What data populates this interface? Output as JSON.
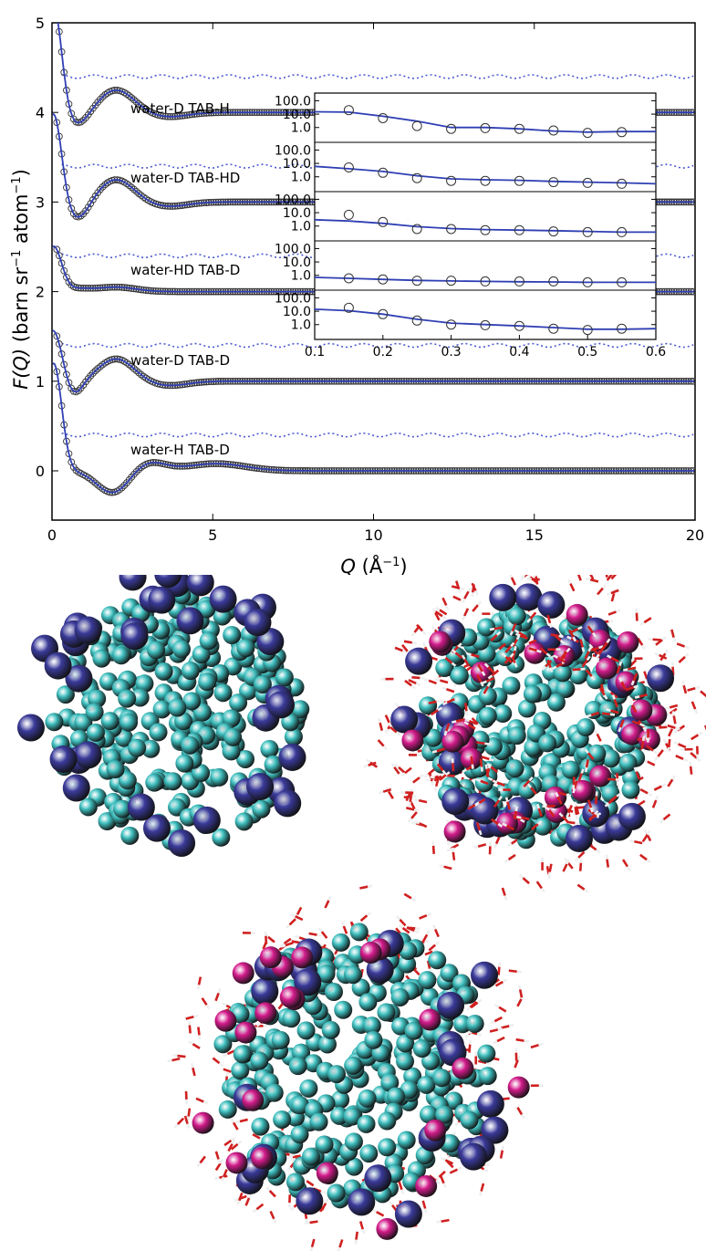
{
  "chart_data": [
    {
      "type": "line",
      "xlabel_parts": {
        "q": "Q",
        "unit": " (Å",
        "exp": "−1",
        "close": ")"
      },
      "ylabel_parts": {
        "f": "F",
        "q": "(Q)",
        "rest": " (barn sr",
        "exp1": "−1",
        "mid": " atom",
        "exp2": "−1",
        "close": ")"
      },
      "xlim": [
        0,
        20
      ],
      "ylim": [
        -0.55,
        5
      ],
      "x_ticks": [
        "0",
        "5",
        "10",
        "15",
        "20"
      ],
      "y_ticks": [
        "0",
        "1",
        "2",
        "3",
        "4",
        "5"
      ],
      "grid": false,
      "colors": {
        "fit": "#2f3fb4",
        "data_marker": "#333333",
        "residual": "#4b5bd0"
      },
      "series": [
        {
          "name": "water-H TAB-D",
          "offset": 0,
          "peaks": [
            [
              0.05,
              1.2,
              0.25
            ],
            [
              1.9,
              -0.25,
              0.5
            ],
            [
              3.0,
              0.1,
              0.5
            ],
            [
              5.1,
              0.08,
              0.9
            ]
          ],
          "residual_level": 0.4
        },
        {
          "name": "water-D TAB-D",
          "offset": 1,
          "peaks": [
            [
              0.05,
              0.6,
              0.3
            ],
            [
              0.6,
              -0.2,
              0.3
            ],
            [
              2.0,
              0.25,
              0.55
            ],
            [
              3.6,
              -0.05,
              0.6
            ]
          ],
          "residual_level": 1.4
        },
        {
          "name": "water-HD TAB-D",
          "offset": 2,
          "peaks": [
            [
              0.05,
              0.5,
              0.25
            ],
            [
              0.8,
              0.03,
              0.4
            ],
            [
              2.0,
              0.05,
              0.6
            ]
          ],
          "residual_level": 2.4
        },
        {
          "name": "water-D TAB-HD",
          "offset": 3,
          "peaks": [
            [
              0.05,
              1.0,
              0.25
            ],
            [
              0.8,
              -0.2,
              0.35
            ],
            [
              2.0,
              0.25,
              0.55
            ],
            [
              3.6,
              -0.05,
              0.6
            ]
          ],
          "residual_level": 3.4
        },
        {
          "name": "water-D TAB-H",
          "offset": 4,
          "peaks": [
            [
              0.05,
              1.2,
              0.25
            ],
            [
              0.8,
              -0.15,
              0.35
            ],
            [
              2.0,
              0.25,
              0.55
            ],
            [
              3.6,
              -0.05,
              0.6
            ]
          ],
          "residual_level": 4.4
        }
      ]
    },
    {
      "type": "line",
      "description_free": true,
      "xlim": [
        0.1,
        0.6
      ],
      "x_ticks": [
        "0.1",
        "0.2",
        "0.3",
        "0.4",
        "0.5",
        "0.6"
      ],
      "y_ticks": [
        "100.0",
        "10.0",
        "1.0"
      ],
      "yscale": "log",
      "panels": [
        {
          "x": [
            0.15,
            0.2,
            0.25,
            0.3,
            0.35,
            0.4,
            0.45,
            0.5,
            0.55
          ],
          "points": [
            20,
            5,
            1.3,
            0.8,
            0.9,
            0.8,
            0.6,
            0.4,
            0.45
          ],
          "fit": [
            [
              0.1,
              15
            ],
            [
              0.15,
              14
            ],
            [
              0.2,
              7
            ],
            [
              0.25,
              3
            ],
            [
              0.3,
              1.0
            ],
            [
              0.35,
              1.0
            ],
            [
              0.4,
              0.8
            ],
            [
              0.45,
              0.55
            ],
            [
              0.5,
              0.45
            ],
            [
              0.55,
              0.5
            ],
            [
              0.6,
              0.5
            ]
          ]
        },
        {
          "x": [
            0.15,
            0.2,
            0.25,
            0.3,
            0.35,
            0.4,
            0.45,
            0.5,
            0.55
          ],
          "points": [
            5,
            2,
            0.8,
            0.5,
            0.5,
            0.5,
            0.4,
            0.35,
            0.3
          ],
          "fit": [
            [
              0.1,
              6
            ],
            [
              0.15,
              4
            ],
            [
              0.2,
              2.5
            ],
            [
              0.25,
              1.2
            ],
            [
              0.3,
              0.7
            ],
            [
              0.35,
              0.6
            ],
            [
              0.4,
              0.55
            ],
            [
              0.45,
              0.45
            ],
            [
              0.5,
              0.4
            ],
            [
              0.55,
              0.35
            ],
            [
              0.6,
              0.3
            ]
          ]
        },
        {
          "x": [
            0.15,
            0.2,
            0.25,
            0.3,
            0.35,
            0.4,
            0.45,
            0.5,
            0.55
          ],
          "points": [
            7,
            2,
            0.6,
            0.6,
            0.5,
            0.5,
            0.4,
            0.35,
            0.35
          ],
          "fit": [
            [
              0.1,
              3
            ],
            [
              0.15,
              2.4
            ],
            [
              0.2,
              1.6
            ],
            [
              0.25,
              0.9
            ],
            [
              0.3,
              0.65
            ],
            [
              0.35,
              0.55
            ],
            [
              0.4,
              0.5
            ],
            [
              0.45,
              0.45
            ],
            [
              0.5,
              0.4
            ],
            [
              0.55,
              0.35
            ],
            [
              0.6,
              0.35
            ]
          ]
        },
        {
          "x": [
            0.15,
            0.2,
            0.25,
            0.3,
            0.35,
            0.4,
            0.45,
            0.5,
            0.55
          ],
          "points": [
            0.6,
            0.5,
            0.4,
            0.4,
            0.35,
            0.35,
            0.35,
            0.3,
            0.3
          ],
          "fit": [
            [
              0.1,
              0.7
            ],
            [
              0.15,
              0.6
            ],
            [
              0.2,
              0.5
            ],
            [
              0.25,
              0.42
            ],
            [
              0.3,
              0.38
            ],
            [
              0.35,
              0.35
            ],
            [
              0.4,
              0.33
            ],
            [
              0.45,
              0.32
            ],
            [
              0.5,
              0.3
            ],
            [
              0.55,
              0.3
            ],
            [
              0.6,
              0.3
            ]
          ]
        },
        {
          "x": [
            0.15,
            0.2,
            0.25,
            0.3,
            0.35,
            0.4,
            0.45,
            0.5,
            0.55
          ],
          "points": [
            18,
            6,
            2,
            1.0,
            0.9,
            0.8,
            0.5,
            0.4,
            0.5
          ],
          "fit": [
            [
              0.1,
              14
            ],
            [
              0.15,
              11
            ],
            [
              0.2,
              6
            ],
            [
              0.25,
              2.5
            ],
            [
              0.3,
              1.3
            ],
            [
              0.35,
              1.0
            ],
            [
              0.4,
              0.8
            ],
            [
              0.45,
              0.6
            ],
            [
              0.5,
              0.45
            ],
            [
              0.55,
              0.45
            ],
            [
              0.6,
              0.5
            ]
          ]
        }
      ]
    }
  ],
  "molecules": {
    "colors": {
      "tail": "#3fbfbf",
      "head": "#3a3a9a",
      "counterion": "#d41c8c",
      "water_o": "#d02020",
      "water_h": "#eeeeee"
    }
  }
}
